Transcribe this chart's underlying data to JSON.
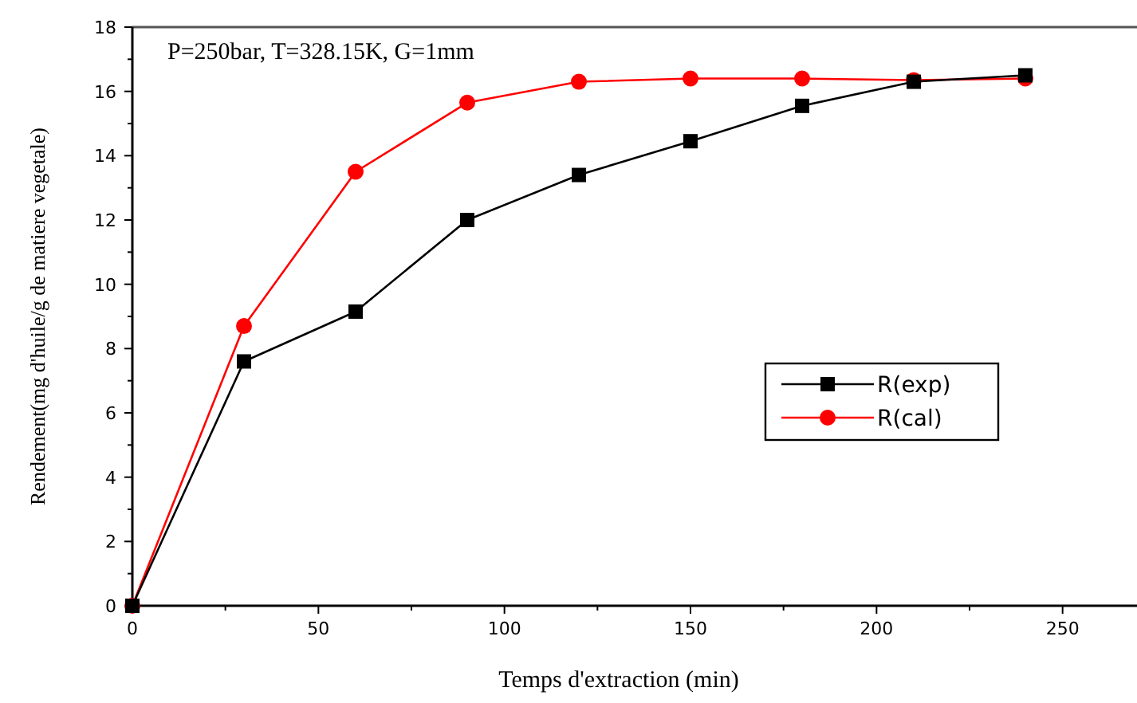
{
  "chart_data": {
    "type": "line",
    "xlabel": "Temps d'extraction (min)",
    "ylabel": "Rendement(mg d'huile/g de matiere vegetale)",
    "annotations": [
      "P=250bar, T=328.15K, G=1mm"
    ],
    "x": [
      0,
      30,
      60,
      90,
      120,
      150,
      180,
      210,
      240
    ],
    "series": [
      {
        "name": "R(exp)",
        "color": "#000000",
        "marker": "square",
        "values": [
          0,
          7.6,
          9.15,
          12.0,
          13.4,
          14.45,
          15.55,
          16.3,
          16.5
        ]
      },
      {
        "name": "R(cal)",
        "color": "#ff0000",
        "marker": "circle",
        "values": [
          0,
          8.7,
          13.5,
          15.65,
          16.3,
          16.4,
          16.4,
          16.35,
          16.4
        ]
      }
    ],
    "xlim": [
      0,
      270
    ],
    "ylim": [
      0,
      18
    ],
    "xticks": [
      0,
      {
        "value": 25,
        "label": null
      },
      50,
      {
        "value": 75,
        "label": null
      },
      100,
      {
        "value": 125,
        "label": null
      },
      150,
      {
        "value": 175,
        "label": null
      },
      200,
      {
        "value": 225,
        "label": null
      },
      250
    ],
    "yticks": [
      0,
      {
        "value": 1,
        "label": null
      },
      2,
      {
        "value": 3,
        "label": null
      },
      4,
      {
        "value": 5,
        "label": null
      },
      6,
      {
        "value": 7,
        "label": null
      },
      8,
      {
        "value": 9,
        "label": null
      },
      10,
      {
        "value": 11,
        "label": null
      },
      12,
      {
        "value": 13,
        "label": null
      },
      14,
      {
        "value": 15,
        "label": null
      },
      16,
      {
        "value": 17,
        "label": null
      },
      18
    ],
    "grid": false,
    "legend": "right",
    "line_style": "solid"
  }
}
